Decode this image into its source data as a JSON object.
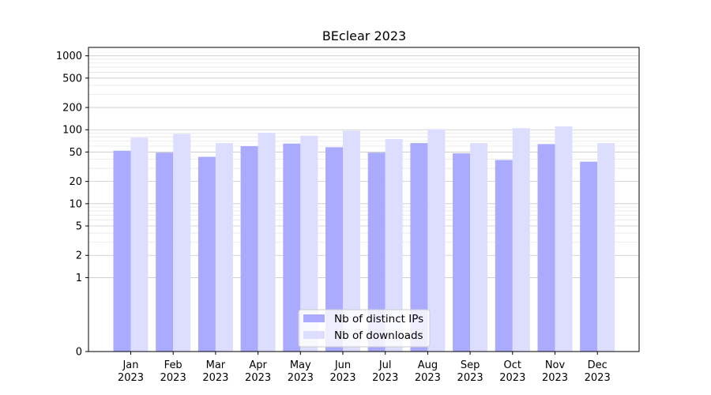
{
  "chart_data": {
    "type": "bar",
    "title": "BEclear 2023",
    "xlabel": "",
    "ylabel": "",
    "categories": [
      "Jan\n2023",
      "Feb\n2023",
      "Mar\n2023",
      "Apr\n2023",
      "May\n2023",
      "Jun\n2023",
      "Jul\n2023",
      "Aug\n2023",
      "Sep\n2023",
      "Oct\n2023",
      "Nov\n2023",
      "Dec\n2023"
    ],
    "category_month": [
      "Jan",
      "Feb",
      "Mar",
      "Apr",
      "May",
      "Jun",
      "Jul",
      "Aug",
      "Sep",
      "Oct",
      "Nov",
      "Dec"
    ],
    "category_year": [
      "2023",
      "2023",
      "2023",
      "2023",
      "2023",
      "2023",
      "2023",
      "2023",
      "2023",
      "2023",
      "2023",
      "2023"
    ],
    "series": [
      {
        "name": "Nb of distinct IPs",
        "color": "#aaaaff",
        "values": [
          52,
          49,
          43,
          60,
          65,
          58,
          49,
          66,
          48,
          39,
          64,
          37
        ]
      },
      {
        "name": "Nb of downloads",
        "color": "#ddddff",
        "values": [
          78,
          88,
          66,
          91,
          83,
          97,
          75,
          102,
          66,
          105,
          111,
          66
        ]
      }
    ],
    "yscale": "symlog",
    "ylim": [
      0,
      1300
    ],
    "yticks": [
      0,
      1,
      2,
      5,
      10,
      20,
      50,
      100,
      200,
      500,
      1000
    ],
    "ytick_labels": [
      "0",
      "1",
      "2",
      "5",
      "10",
      "20",
      "50",
      "100",
      "200",
      "500",
      "1000"
    ],
    "grid": true,
    "legend_position": "lower center"
  }
}
